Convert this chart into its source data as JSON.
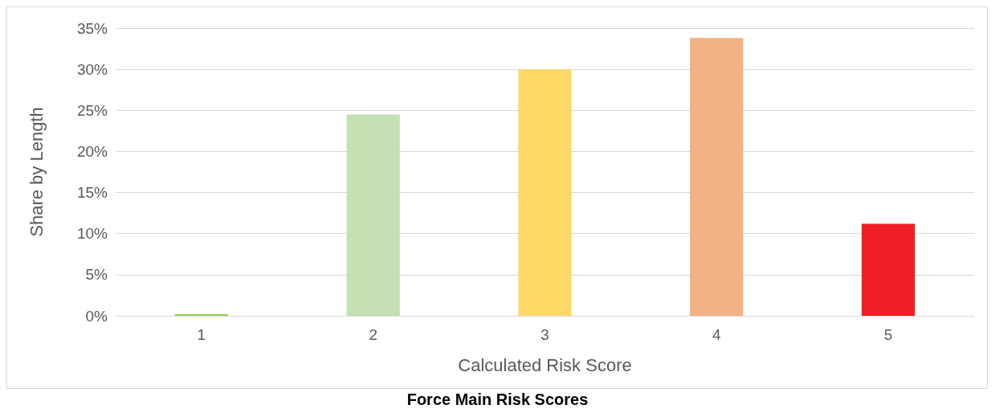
{
  "chart_data": {
    "type": "bar",
    "title": "Force Main Risk Scores",
    "xlabel": "Calculated Risk Score",
    "ylabel": "Share by Length",
    "categories": [
      "1",
      "2",
      "3",
      "4",
      "5"
    ],
    "values": [
      0.2,
      24.5,
      30,
      33.8,
      11.2
    ],
    "colors": [
      "#92d050",
      "#c5e0b4",
      "#ffd966",
      "#f4b183",
      "#ee1f25"
    ],
    "ylim": [
      0,
      35
    ],
    "yticks": [
      {
        "value": 0,
        "label": "0%"
      },
      {
        "value": 5,
        "label": "5%"
      },
      {
        "value": 10,
        "label": "10%"
      },
      {
        "value": 15,
        "label": "15%"
      },
      {
        "value": 20,
        "label": "20%"
      },
      {
        "value": 25,
        "label": "25%"
      },
      {
        "value": 30,
        "label": "30%"
      },
      {
        "value": 35,
        "label": "35%"
      }
    ],
    "grid": "y"
  }
}
